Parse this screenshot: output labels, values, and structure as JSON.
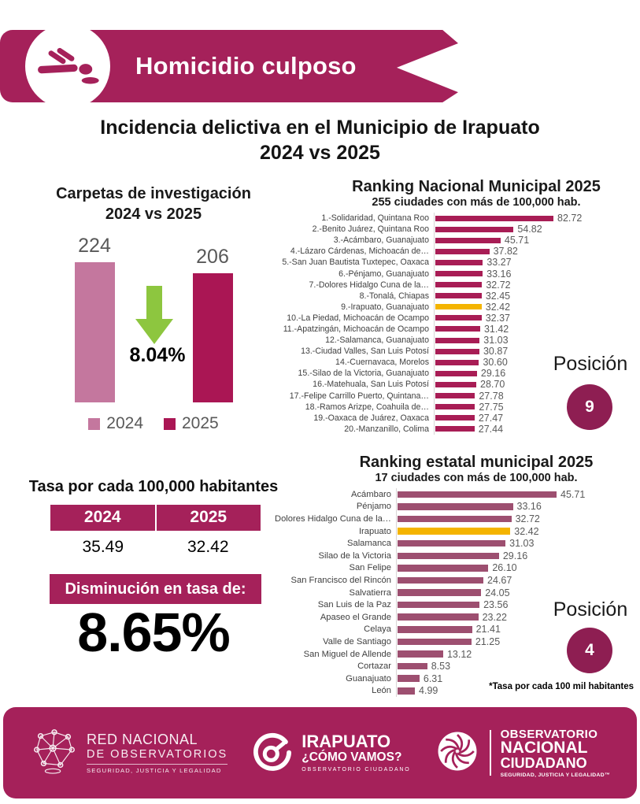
{
  "colors": {
    "magenta": "#a5215a",
    "badge_dark_magenta": "#8e1e52",
    "bar_2024_pink": "#c4779e",
    "bar_2025_crimson": "#aa1654",
    "national_bar": "#a81d55",
    "estatal_bar": "#9d4f70",
    "highlight_gold": "#f4b400",
    "arrow_green": "#8dc63f",
    "gray_text": "#595959"
  },
  "header": {
    "title": "Homicidio culposo",
    "icon": "fallen-person-icon"
  },
  "page_title": {
    "line1": "Incidencia delictiva en el Municipio de Irapuato",
    "line2": "2024 vs 2025"
  },
  "chart_data": [
    {
      "id": "carpetas",
      "type": "bar",
      "title": "Carpetas de investigación",
      "subtitle": "2024 vs 2025",
      "categories": [
        "2024",
        "2025"
      ],
      "values": [
        224,
        206
      ],
      "change_direction": "down",
      "change_label": "8.04%",
      "legend": [
        "2024",
        "2025"
      ],
      "ylim": [
        0,
        240
      ]
    },
    {
      "id": "ranking_nacional",
      "type": "bar-horizontal",
      "title": "Ranking Nacional Municipal 2025",
      "subtitle": "255 ciudades con más de 100,000 hab.",
      "highlight_index": 8,
      "xlim": [
        0,
        90
      ],
      "categories": [
        "1.-Solidaridad, Quintana Roo",
        "2.-Benito Juárez, Quintana Roo",
        "3.-Acámbaro, Guanajuato",
        "4.-Lázaro Cárdenas, Michoacán de…",
        "5.-San Juan Bautista Tuxtepec, Oaxaca",
        "6.-Pénjamo, Guanajuato",
        "7.-Dolores Hidalgo Cuna de la…",
        "8.-Tonalá, Chiapas",
        "9.-Irapuato, Guanajuato",
        "10.-La Piedad, Michoacán de Ocampo",
        "11.-Apatzingán, Michoacán de Ocampo",
        "12.-Salamanca, Guanajuato",
        "13.-Ciudad Valles, San Luis Potosí",
        "14.-Cuernavaca, Morelos",
        "15.-Silao de la Victoria, Guanajuato",
        "16.-Matehuala, San Luis Potosí",
        "17.-Felipe Carrillo Puerto, Quintana…",
        "18.-Ramos Arizpe, Coahuila de…",
        "19.-Oaxaca de Juárez, Oaxaca",
        "20.-Manzanillo, Colima"
      ],
      "values": [
        82.72,
        54.82,
        45.71,
        37.82,
        33.27,
        33.16,
        32.72,
        32.45,
        32.42,
        32.37,
        31.42,
        31.03,
        30.87,
        30.6,
        29.16,
        28.7,
        27.78,
        27.75,
        27.47,
        27.44
      ],
      "value_labels": [
        "82.72",
        "54.82",
        "45.71",
        "37.82",
        "33.27",
        "33.16",
        "32.72",
        "32.45",
        "32.42",
        "32.37",
        "31.42",
        "31.03",
        "30.87",
        "30.60",
        "29.16",
        "28.70",
        "27.78",
        "27.75",
        "27.47",
        "27.44"
      ]
    },
    {
      "id": "ranking_estatal",
      "type": "bar-horizontal",
      "title": "Ranking estatal municipal 2025",
      "subtitle": "17 ciudades con más de 100,000 hab.",
      "highlight_index": 3,
      "xlim": [
        0,
        50
      ],
      "categories": [
        "Acámbaro",
        "Pénjamo",
        "Dolores Hidalgo Cuna de la…",
        "Irapuato",
        "Salamanca",
        "Silao de la Victoria",
        "San Felipe",
        "San Francisco del Rincón",
        "Salvatierra",
        "San Luis de la Paz",
        "Apaseo el Grande",
        "Celaya",
        "Valle de Santiago",
        "San Miguel de Allende",
        "Cortazar",
        "Guanajuato",
        "León"
      ],
      "values": [
        45.71,
        33.16,
        32.72,
        32.42,
        31.03,
        29.16,
        26.1,
        24.67,
        24.05,
        23.56,
        23.22,
        21.41,
        21.25,
        13.12,
        8.53,
        6.31,
        4.99
      ],
      "value_labels": [
        "45.71",
        "33.16",
        "32.72",
        "32.42",
        "31.03",
        "29.16",
        "26.10",
        "24.67",
        "24.05",
        "23.56",
        "23.22",
        "21.41",
        "21.25",
        "13.12",
        "8.53",
        "6.31",
        "4.99"
      ]
    }
  ],
  "posicion_nacional": {
    "label": "Posición",
    "value": "9"
  },
  "posicion_estatal": {
    "label": "Posición",
    "value": "4"
  },
  "tasa_table": {
    "title": "Tasa por cada 100,000 habitantes",
    "headers": [
      "2024",
      "2025"
    ],
    "values": [
      "35.49",
      "32.42"
    ]
  },
  "disminucion": {
    "label": "Disminución en tasa de:",
    "value": "8.65%"
  },
  "footnote": "*Tasa por cada 100 mil habitantes",
  "footer": {
    "logo_red_nacional": {
      "line1": "RED NACIONAL",
      "line2": "DE OBSERVATORIOS",
      "line3": "SEGURIDAD, JUSTICIA Y LEGALIDAD"
    },
    "logo_irapuato": {
      "line1": "IRAPUATO",
      "line2": "¿CÓMO VAMOS?",
      "line3": "OBSERVATORIO CIUDADANO"
    },
    "logo_onc": {
      "line1": "OBSERVATORIO",
      "line2": "NACIONAL",
      "line3": "CIUDADANO",
      "line4": "SEGURIDAD, JUSTICIA Y LEGALIDAD™"
    }
  }
}
